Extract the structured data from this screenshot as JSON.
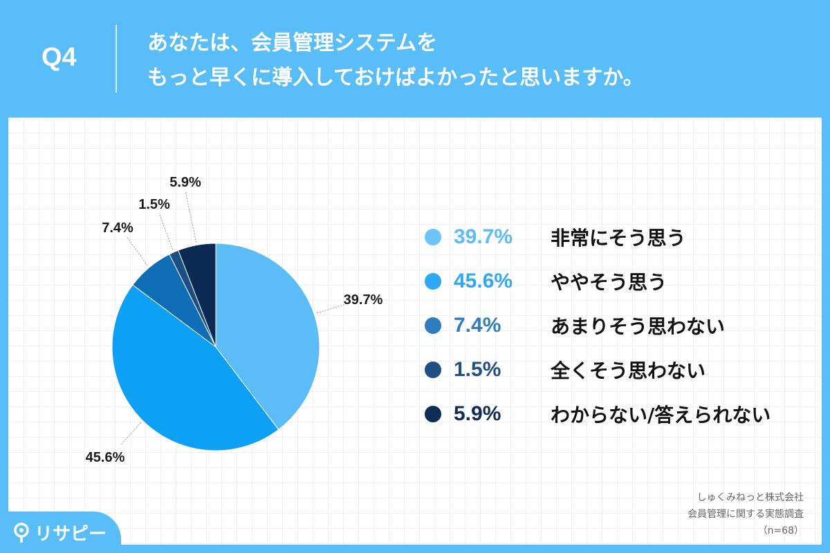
{
  "header": {
    "question_label": "Q4",
    "title_line1": "あなたは、会員管理システムを",
    "title_line2": "もっと早くに導入しておけばよかったと思いますか。"
  },
  "chart_data": {
    "type": "pie",
    "start": "top, clockwise",
    "slices": [
      {
        "label": "非常にそう思う",
        "value": 39.7,
        "value_label": "39.7%",
        "color": "#5bbcf8"
      },
      {
        "label": "ややそう思う",
        "value": 45.6,
        "value_label": "45.6%",
        "color": "#0da0f5"
      },
      {
        "label": "あまりそう思わない",
        "value": 7.4,
        "value_label": "7.4%",
        "color": "#0e6db5"
      },
      {
        "label": "全くそう思わない",
        "value": 1.5,
        "value_label": "1.5%",
        "color": "#1a4e85"
      },
      {
        "label": "わからない/答えられない",
        "value": 5.9,
        "value_label": "5.9%",
        "color": "#0b2b55"
      }
    ]
  },
  "legend": {
    "items": [
      {
        "pct": "39.7%",
        "text": "非常にそう思う",
        "dot_color": "#6cc4fa",
        "pct_color": "#5bbcf8"
      },
      {
        "pct": "45.6%",
        "text": "ややそう思う",
        "dot_color": "#2ea7f5",
        "pct_color": "#2ea7f5"
      },
      {
        "pct": "7.4%",
        "text": "あまりそう思わない",
        "dot_color": "#2f7cc0",
        "pct_color": "#2f7cc0"
      },
      {
        "pct": "1.5%",
        "text": "全くそう思わない",
        "dot_color": "#1f4f84",
        "pct_color": "#1f4f84"
      },
      {
        "pct": "5.9%",
        "text": "わからない/答えられない",
        "dot_color": "#0e2c54",
        "pct_color": "#0e2c54"
      }
    ]
  },
  "source": {
    "company": "しゅくみねっと株式会社",
    "survey": "会員管理に関する実態調査",
    "sample": "（n=68）"
  },
  "brand": {
    "logo_text": "リサピー"
  }
}
